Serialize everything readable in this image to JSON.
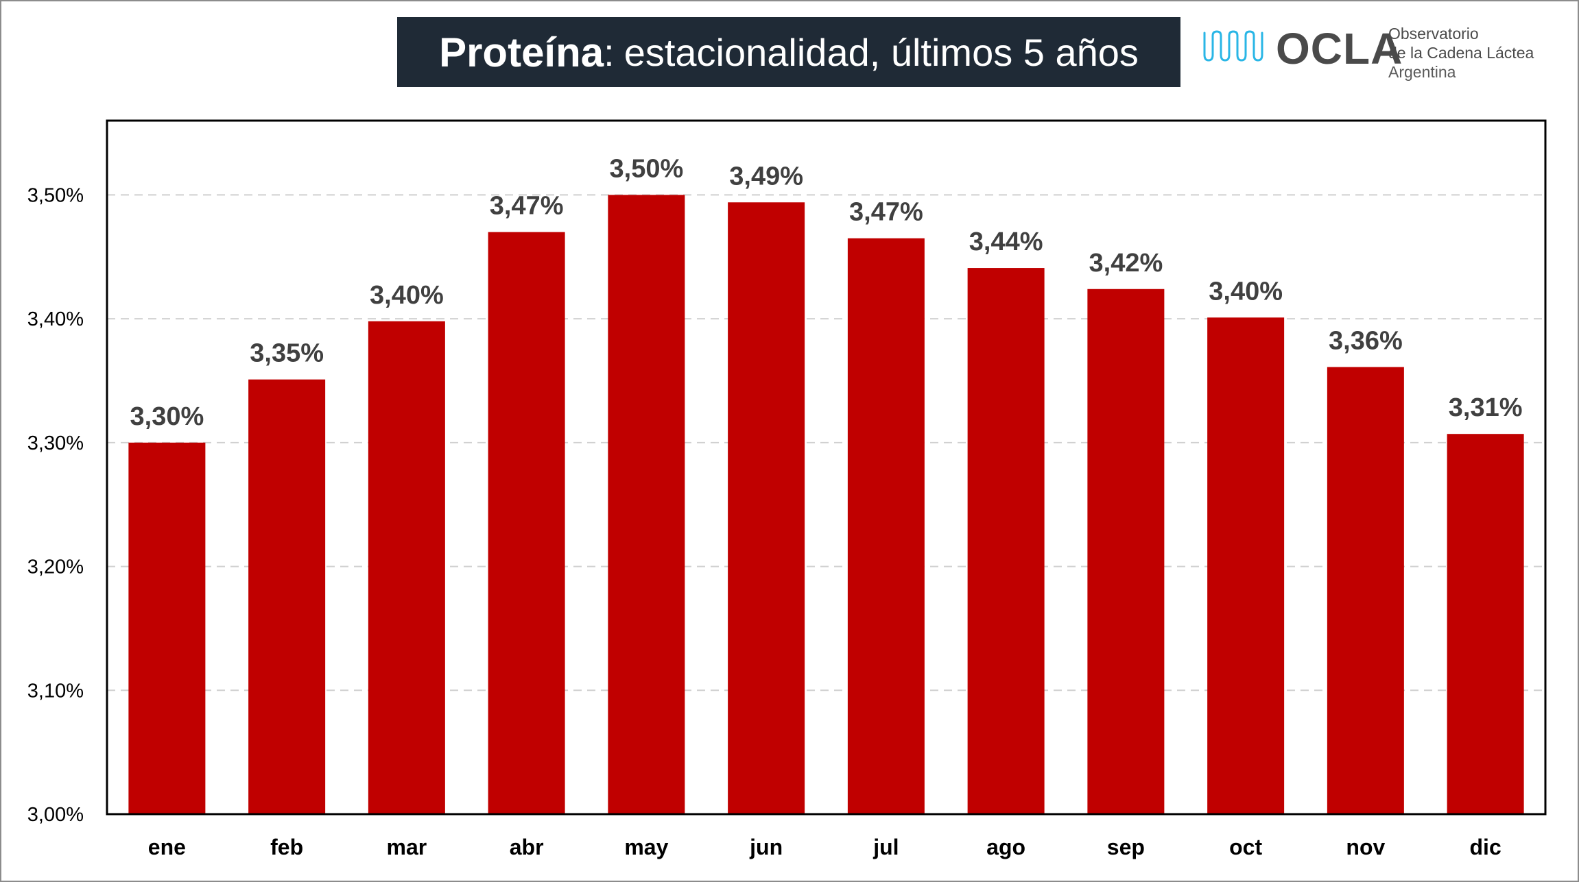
{
  "header": {
    "title_bold": "Proteína",
    "title_colon": ":",
    "title_rest": "estacionalidad, últimos 5 años"
  },
  "logo": {
    "acronym": "OCLA",
    "line1": "Observatorio",
    "line2": "de la Cadena Láctea",
    "line3": "Argentina",
    "wave_color": "#29b6e6"
  },
  "chart_data": {
    "type": "bar",
    "categories": [
      "ene",
      "feb",
      "mar",
      "abr",
      "may",
      "jun",
      "jul",
      "ago",
      "sep",
      "oct",
      "nov",
      "dic"
    ],
    "values": [
      3.3,
      3.351,
      3.398,
      3.47,
      3.5,
      3.494,
      3.465,
      3.441,
      3.424,
      3.401,
      3.361,
      3.307
    ],
    "data_labels": [
      "3,30%",
      "3,35%",
      "3,40%",
      "3,47%",
      "3,50%",
      "3,49%",
      "3,47%",
      "3,44%",
      "3,42%",
      "3,40%",
      "3,36%",
      "3,31%"
    ],
    "ylim": [
      3.0,
      3.56
    ],
    "yticks": [
      3.0,
      3.1,
      3.2,
      3.3,
      3.4,
      3.5
    ],
    "ytick_labels": [
      "3,00%",
      "3,10%",
      "3,20%",
      "3,30%",
      "3,40%",
      "3,50%"
    ],
    "grid": true,
    "bar_color": "#c00000",
    "label_color": "#404040"
  }
}
